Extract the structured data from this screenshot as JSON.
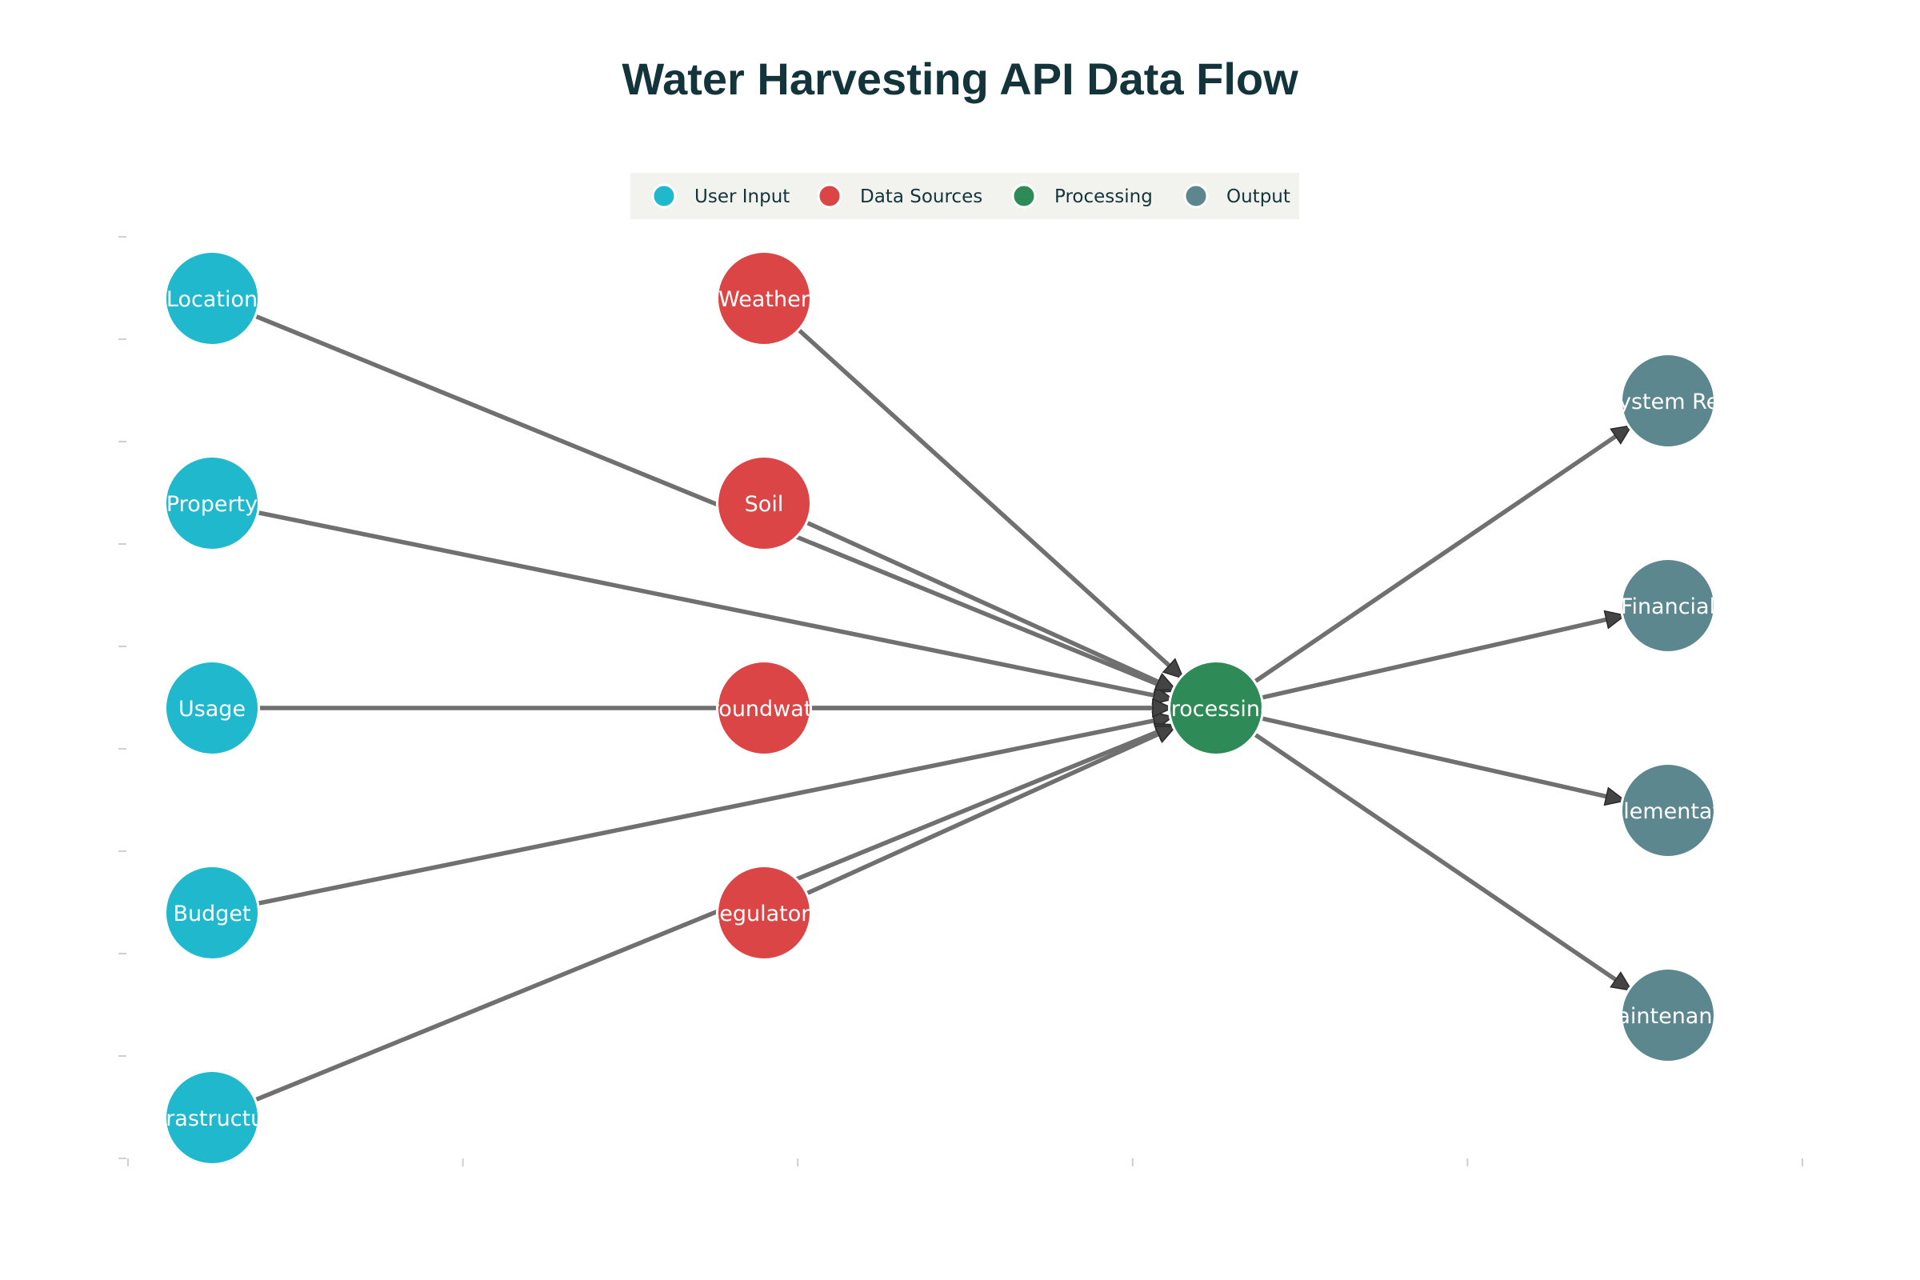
{
  "title": "Water Harvesting API Data Flow",
  "legend": [
    {
      "label": "User Input",
      "color": "#1fb8cd"
    },
    {
      "label": "Data Sources",
      "color": "#db4545"
    },
    {
      "label": "Processing",
      "color": "#2e8b57"
    },
    {
      "label": "Output",
      "color": "#5d878f"
    }
  ],
  "nodes": [
    {
      "id": "location",
      "label": "Location",
      "group": 0,
      "col": 0,
      "row": 0
    },
    {
      "id": "property",
      "label": "Property",
      "group": 0,
      "col": 0,
      "row": 1
    },
    {
      "id": "usage",
      "label": "Usage",
      "group": 0,
      "col": 0,
      "row": 2
    },
    {
      "id": "budget",
      "label": "Budget",
      "group": 0,
      "col": 0,
      "row": 3
    },
    {
      "id": "infrastructure",
      "label": "Infrastructure",
      "group": 0,
      "col": 0,
      "row": 4
    },
    {
      "id": "weather",
      "label": "Weather",
      "group": 1,
      "col": 1,
      "row": 0
    },
    {
      "id": "soil",
      "label": "Soil",
      "group": 1,
      "col": 1,
      "row": 1
    },
    {
      "id": "groundwater",
      "label": "Groundwater",
      "group": 1,
      "col": 1,
      "row": 2
    },
    {
      "id": "regulatory",
      "label": "Regulatory",
      "group": 1,
      "col": 1,
      "row": 3
    },
    {
      "id": "processing",
      "label": "Processing",
      "group": 2,
      "col": 2,
      "row": 2
    },
    {
      "id": "system_rec",
      "label": "System Rec",
      "group": 3,
      "col": 3,
      "row": 0.5
    },
    {
      "id": "financial",
      "label": "Financial",
      "group": 3,
      "col": 3,
      "row": 1.5
    },
    {
      "id": "implementation",
      "label": "Implementation",
      "group": 3,
      "col": 3,
      "row": 2.5
    },
    {
      "id": "maintenance",
      "label": "Maintenance",
      "group": 3,
      "col": 3,
      "row": 3.5
    }
  ],
  "edges": [
    {
      "from": "location",
      "to": "processing"
    },
    {
      "from": "property",
      "to": "processing"
    },
    {
      "from": "usage",
      "to": "processing"
    },
    {
      "from": "budget",
      "to": "processing"
    },
    {
      "from": "infrastructure",
      "to": "processing"
    },
    {
      "from": "weather",
      "to": "processing"
    },
    {
      "from": "soil",
      "to": "processing"
    },
    {
      "from": "groundwater",
      "to": "processing"
    },
    {
      "from": "regulatory",
      "to": "processing"
    },
    {
      "from": "processing",
      "to": "system_rec"
    },
    {
      "from": "processing",
      "to": "financial"
    },
    {
      "from": "processing",
      "to": "implementation"
    },
    {
      "from": "processing",
      "to": "maintenance"
    }
  ]
}
